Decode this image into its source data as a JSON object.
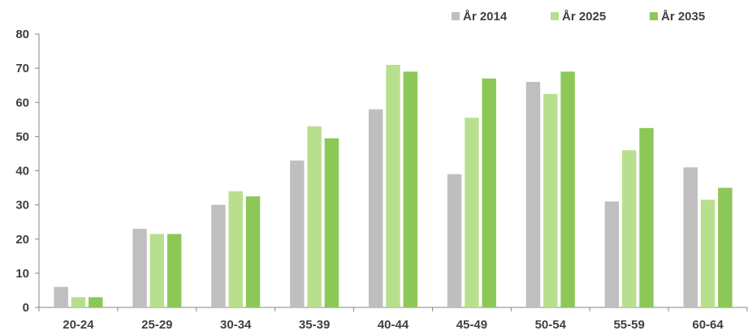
{
  "chart_data": {
    "type": "bar",
    "categories": [
      "20-24",
      "25-29",
      "30-34",
      "35-39",
      "40-44",
      "45-49",
      "50-54",
      "55-59",
      "60-64"
    ],
    "series": [
      {
        "name": "År 2014",
        "color": "#bfbfbf",
        "values": [
          6,
          23,
          30,
          43,
          58,
          39,
          66,
          31,
          41
        ]
      },
      {
        "name": "År 2025",
        "color": "#b8df8e",
        "values": [
          3,
          21.5,
          34,
          53,
          71,
          55.5,
          62.5,
          46,
          31.5
        ]
      },
      {
        "name": "År 2035",
        "color": "#8cc858",
        "values": [
          3,
          21.5,
          32.5,
          49.5,
          69,
          67,
          69,
          52.5,
          35
        ]
      }
    ],
    "yticks": [
      "0",
      "10",
      "20",
      "30",
      "40",
      "50",
      "60",
      "70",
      "80"
    ],
    "ylim": [
      0,
      80
    ],
    "grid": false,
    "legend_position": "top-right"
  }
}
